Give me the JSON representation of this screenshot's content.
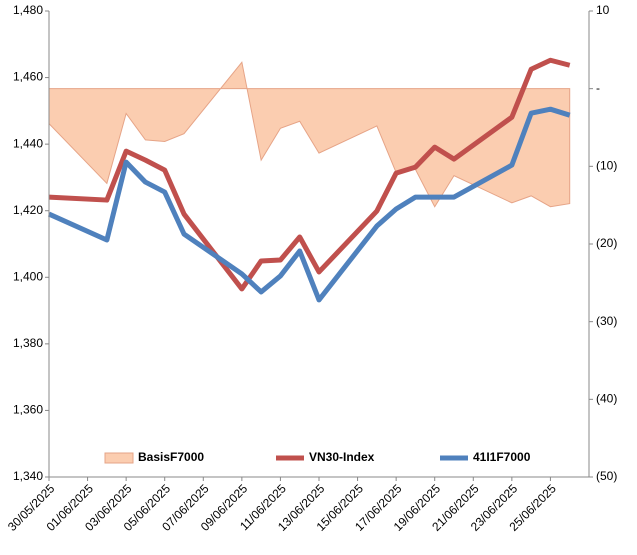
{
  "chart_data": {
    "type": "line",
    "x": [
      "30/05/2025",
      "02/06/2025",
      "03/06/2025",
      "04/06/2025",
      "05/06/2025",
      "06/06/2025",
      "09/06/2025",
      "10/06/2025",
      "11/06/2025",
      "12/06/2025",
      "13/06/2025",
      "16/06/2025",
      "17/06/2025",
      "18/06/2025",
      "19/06/2025",
      "20/06/2025",
      "23/06/2025",
      "24/06/2025",
      "25/06/2025",
      "26/06/2025"
    ],
    "xlim": [
      "30/05/2025",
      "27/06/2025"
    ],
    "xticks": [
      "30/05/2025",
      "01/06/2025",
      "03/06/2025",
      "05/06/2025",
      "07/06/2025",
      "09/06/2025",
      "11/06/2025",
      "13/06/2025",
      "15/06/2025",
      "17/06/2025",
      "19/06/2025",
      "21/06/2025",
      "23/06/2025",
      "25/06/2025"
    ],
    "ylim": [
      1340,
      1480
    ],
    "yticks": [
      {
        "value": 1340,
        "label": "1,340"
      },
      {
        "value": 1360,
        "label": "1,360"
      },
      {
        "value": 1380,
        "label": "1,380"
      },
      {
        "value": 1400,
        "label": "1,400"
      },
      {
        "value": 1420,
        "label": "1,420"
      },
      {
        "value": 1440,
        "label": "1,440"
      },
      {
        "value": 1460,
        "label": "1,460"
      },
      {
        "value": 1480,
        "label": "1,480"
      }
    ],
    "y2lim": [
      -50,
      10
    ],
    "y2ticks": [
      10,
      {
        "value": 0,
        "label": "-"
      },
      {
        "value": -10,
        "label": "(10)"
      },
      {
        "value": -20,
        "label": "(20)"
      },
      {
        "value": -30,
        "label": "(30)"
      },
      {
        "value": -40,
        "label": "(40)"
      },
      {
        "value": -50,
        "label": "(50)"
      }
    ],
    "legend": "bottom",
    "series": [
      {
        "name": "BasisF7000",
        "type": "area",
        "axis": "y2",
        "color": "#fbcdb0",
        "values": [
          -4.5,
          -12.2,
          -3.2,
          -6.6,
          -6.8,
          -5.8,
          3.4,
          -9.2,
          -5.1,
          -4.2,
          -8.3,
          -4.8,
          -10.8,
          -10.4,
          -15.2,
          -11.2,
          -14.7,
          -13.8,
          -15.2,
          -14.8
        ]
      },
      {
        "name": "VN30-Index",
        "type": "line",
        "color": "#c0504d",
        "values": [
          1424.1,
          1423.2,
          1437.9,
          1435.2,
          1432.2,
          1419,
          1396.5,
          1404.9,
          1405.2,
          1412.1,
          1401.6,
          1419.9,
          1431.3,
          1433.1,
          1439.1,
          1435.5,
          1448.1,
          1462.5,
          1465.2,
          1463.7
        ]
      },
      {
        "name": "41I1F7000",
        "type": "line",
        "color": "#4f81bd",
        "values": [
          1419,
          1411.2,
          1434.6,
          1428.6,
          1425.6,
          1413,
          1401,
          1395.6,
          1400.4,
          1407.9,
          1393.2,
          1415.4,
          1420.5,
          1424.1,
          1424.1,
          1424.1,
          1433.7,
          1449.3,
          1450.5,
          1448.7
        ]
      }
    ]
  }
}
